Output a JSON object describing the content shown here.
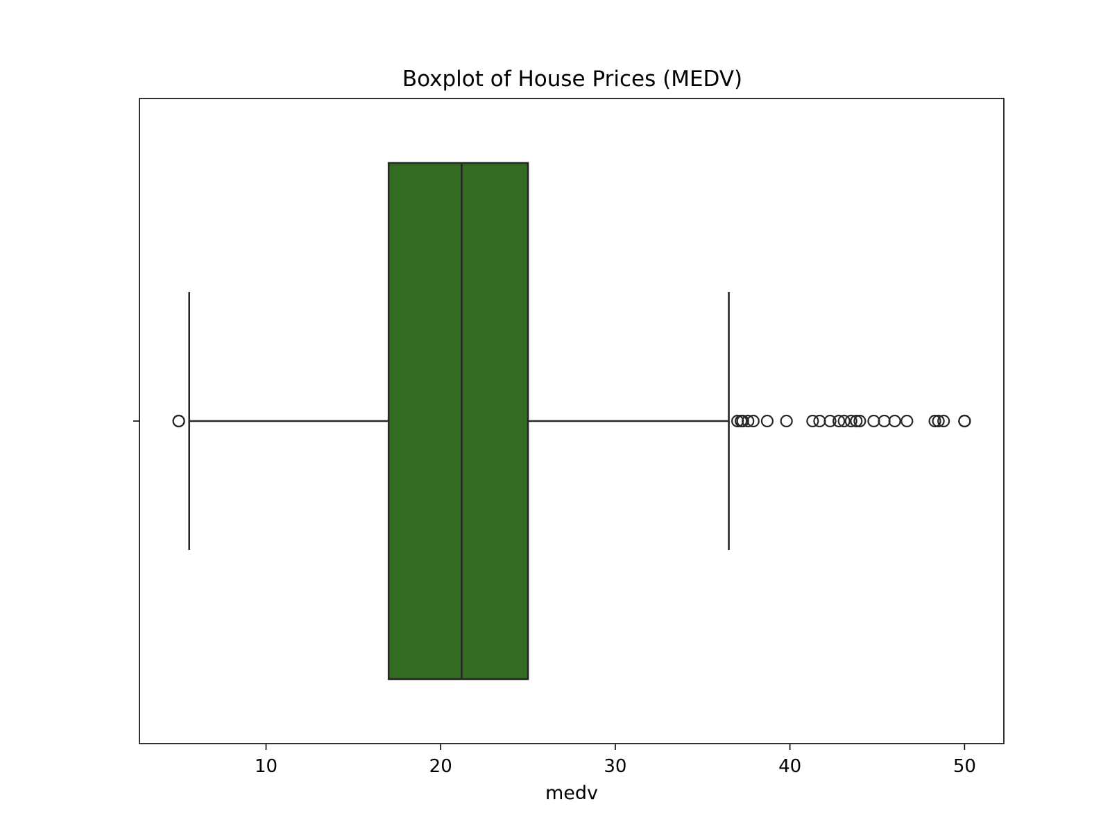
{
  "chart_data": {
    "type": "boxplot",
    "orientation": "horizontal",
    "title": "Boxplot of House Prices (MEDV)",
    "xlabel": "medv",
    "ylabel": "",
    "xlim": [
      2.75,
      52.25
    ],
    "xticks": [
      10,
      20,
      30,
      40,
      50
    ],
    "grid": false,
    "box": {
      "whisker_low": 5.6,
      "q1": 17.02,
      "median": 21.2,
      "q3": 25.0,
      "whisker_high": 36.5,
      "fill_color": "#336c22",
      "line_color": "#262626"
    },
    "outliers": [
      5.0,
      5.0,
      37.0,
      37.2,
      37.3,
      37.6,
      37.9,
      38.7,
      39.8,
      41.3,
      41.7,
      42.3,
      42.8,
      43.1,
      43.5,
      43.8,
      44.0,
      44.8,
      45.4,
      46.0,
      46.7,
      48.3,
      48.5,
      48.8,
      50.0,
      50.0,
      50.0
    ]
  }
}
